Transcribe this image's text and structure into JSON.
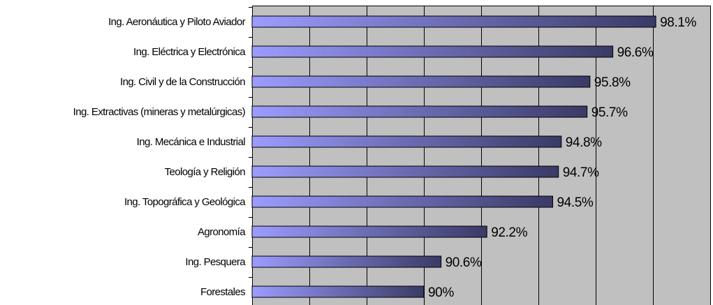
{
  "chart_data": {
    "type": "bar",
    "orientation": "horizontal",
    "title": "",
    "xlabel": "",
    "ylabel": "",
    "categories": [
      "Ing. Aeronáutica y Piloto Aviador",
      "Ing. Eléctrica y Electrónica",
      "Ing. Civil y de la Construcción",
      "Ing. Extractivas (mineras y metalúrgicas)",
      "Ing. Mecánica e Industrial",
      "Teología y Religión",
      "Ing. Topográfica y Geológica",
      "Agronomía",
      "Ing. Pesquera",
      "Forestales"
    ],
    "values": [
      98.1,
      96.6,
      95.8,
      95.7,
      94.8,
      94.7,
      94.5,
      92.2,
      90.6,
      90
    ],
    "value_labels": [
      "98.1%",
      "96.6%",
      "95.8%",
      "95.7%",
      "94.8%",
      "94.7%",
      "94.5%",
      "92.2%",
      "90.6%",
      "90%"
    ],
    "xlim": [
      84,
      100
    ],
    "grid": true,
    "legend": "none",
    "colors": {
      "plot_background": "#c0c0c0",
      "bar_gradient_start": "#9c9cff",
      "bar_gradient_end": "#3a3a66",
      "grid": "#000000",
      "text": "#000000"
    }
  }
}
